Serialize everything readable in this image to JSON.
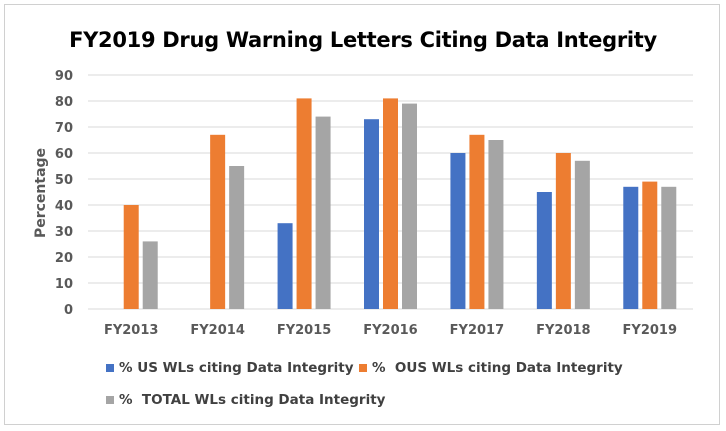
{
  "chart_data": {
    "type": "bar",
    "title": "FY2019 Drug Warning Letters Citing Data Integrity",
    "xlabel": "",
    "ylabel": "Percentage",
    "ylim": [
      0,
      90
    ],
    "yticks": [
      0,
      10,
      20,
      30,
      40,
      50,
      60,
      70,
      80,
      90
    ],
    "grid": true,
    "legend_position": "bottom",
    "categories": [
      "FY2013",
      "FY2014",
      "FY2015",
      "FY2016",
      "FY2017",
      "FY2018",
      "FY2019"
    ],
    "series": [
      {
        "name": "% US WLs citing Data Integrity",
        "color": "#4472c4",
        "values": [
          null,
          null,
          33,
          73,
          60,
          45,
          47
        ]
      },
      {
        "name": "%  OUS WLs citing Data Integrity",
        "color": "#ed7d31",
        "values": [
          40,
          67,
          81,
          81,
          67,
          60,
          49
        ]
      },
      {
        "name": "%  TOTAL WLs citing Data Integrity",
        "color": "#a5a5a5",
        "values": [
          26,
          55,
          74,
          79,
          65,
          57,
          47
        ]
      }
    ]
  }
}
